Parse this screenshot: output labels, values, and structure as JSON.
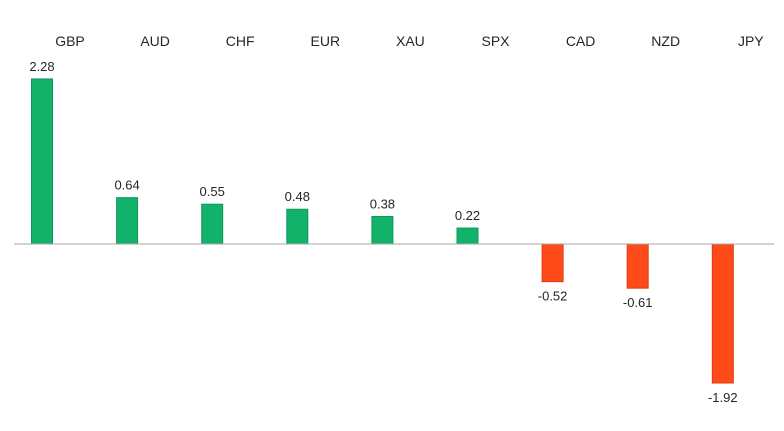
{
  "chart_data": {
    "type": "bar",
    "title": "",
    "xlabel": "",
    "ylabel": "",
    "categories": [
      "GBP",
      "AUD",
      "CHF",
      "EUR",
      "XAU",
      "SPX",
      "CAD",
      "NZD",
      "JPY"
    ],
    "values": [
      2.28,
      0.64,
      0.55,
      0.48,
      0.38,
      0.22,
      -0.52,
      -0.61,
      -1.92
    ],
    "value_labels": [
      "2.28",
      "0.64",
      "0.55",
      "0.48",
      "0.38",
      "0.22",
      "-0.52",
      "-0.61",
      "-1.92"
    ],
    "ylim": [
      -2.2,
      2.4
    ],
    "category_labels_position": "top",
    "grid": false,
    "legend": "none",
    "colors": {
      "positive": "#12B26B",
      "positive_dark": "#0E9A5C",
      "negative": "#FF4A1A",
      "negative_dark": "#E03A0D",
      "baseline": "#A6A6A6"
    }
  }
}
